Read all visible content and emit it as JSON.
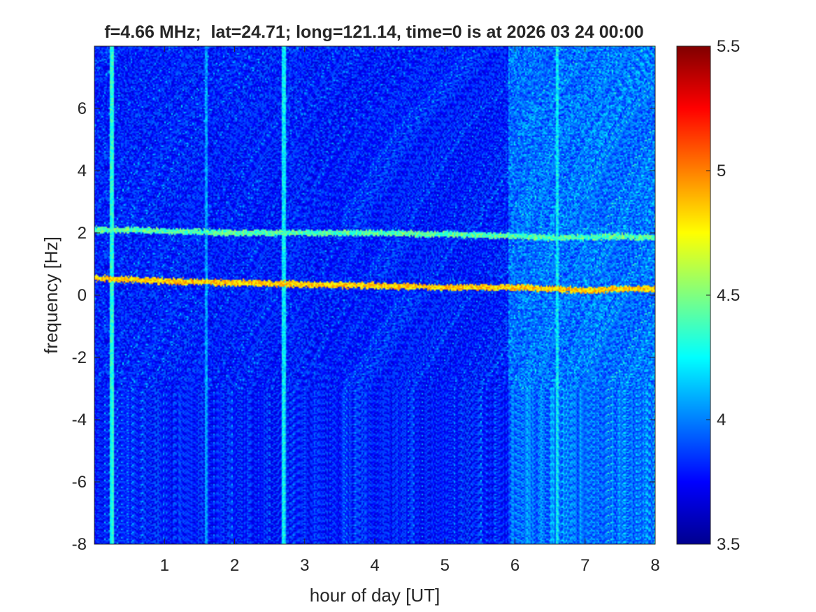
{
  "chart_data": {
    "type": "heatmap",
    "title": "f=4.66 MHz;  lat=24.71; long=121.14, time=0 is at 2026 03 24 00:00",
    "xlabel": "hour of day [UT]",
    "ylabel": "frequency [Hz]",
    "xlim": [
      0,
      8
    ],
    "ylim": [
      -8,
      8
    ],
    "x_ticks": [
      "1",
      "2",
      "3",
      "4",
      "5",
      "6",
      "7",
      "8"
    ],
    "y_ticks": [
      "-8",
      "-6",
      "-4",
      "-2",
      "0",
      "2",
      "4",
      "6"
    ],
    "colorbar": {
      "colormap": "jet",
      "limits": [
        3.5,
        5.5
      ],
      "ticks": [
        "3.5",
        "4",
        "4.5",
        "5",
        "5.5"
      ]
    },
    "background_level": 3.7,
    "features": [
      {
        "kind": "horizontal-trace",
        "t": [
          0,
          1,
          2,
          3,
          4,
          5,
          6,
          6.5,
          7,
          7.5,
          8
        ],
        "f": [
          0.55,
          0.45,
          0.4,
          0.35,
          0.3,
          0.25,
          0.25,
          0.2,
          0.15,
          0.2,
          0.2
        ],
        "level": 4.9
      },
      {
        "kind": "horizontal-trace",
        "t": [
          0,
          0.5,
          1,
          2,
          3,
          4,
          5,
          6,
          6.5,
          7,
          7.5,
          8
        ],
        "f": [
          2.1,
          2.1,
          2.05,
          2.0,
          2.0,
          2.0,
          1.95,
          1.9,
          1.85,
          1.85,
          1.9,
          1.85
        ],
        "level": 4.4
      },
      {
        "kind": "vertical-stripe",
        "t": 0.25,
        "level": 4.3
      },
      {
        "kind": "vertical-stripe",
        "t": 1.6,
        "level": 4.0
      },
      {
        "kind": "vertical-stripe",
        "t": 2.7,
        "level": 4.2
      },
      {
        "kind": "vertical-stripe",
        "t": 6.6,
        "level": 4.2
      },
      {
        "kind": "noisy-band",
        "t_range": [
          5.9,
          8
        ],
        "level": 3.95
      }
    ]
  },
  "colors": {
    "axis": "#262626",
    "low": "#00008f",
    "high": "#800000"
  }
}
